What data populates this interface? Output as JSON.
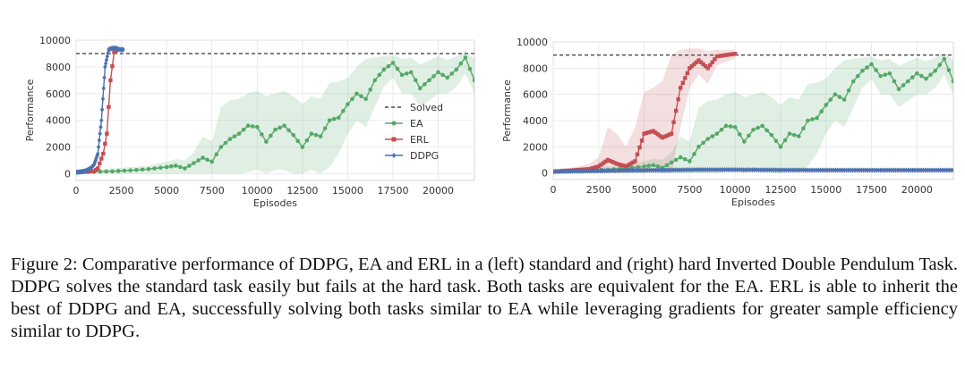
{
  "chart_data": [
    {
      "type": "line",
      "panel": "left",
      "xlabel": "Episodes",
      "ylabel": "Performance",
      "xlim": [
        0,
        22000
      ],
      "ylim": [
        -500,
        10000
      ],
      "xticks": [
        "0",
        "2500",
        "5000",
        "7500",
        "10000",
        "12500",
        "15000",
        "17500",
        "20000"
      ],
      "yticks": [
        "0",
        "2000",
        "4000",
        "6000",
        "8000",
        "10000"
      ],
      "grid": true,
      "legend_placement": "lower-right",
      "solved_threshold": 9000,
      "series": [
        {
          "name": "Solved",
          "style": "dashed",
          "color": "#222222",
          "x": [
            0,
            22000
          ],
          "y": [
            9000,
            9000
          ]
        },
        {
          "name": "EA",
          "color": "#55a868",
          "x": [
            0,
            1000,
            2000,
            3000,
            4000,
            5000,
            5500,
            6000,
            6500,
            7000,
            7500,
            8000,
            8500,
            9000,
            9500,
            10000,
            10500,
            11000,
            11500,
            12000,
            12500,
            13000,
            13500,
            14000,
            14500,
            15000,
            15500,
            16000,
            16500,
            17000,
            17500,
            18000,
            18500,
            19000,
            19500,
            20000,
            20500,
            21000,
            21500,
            22000
          ],
          "y": [
            100,
            150,
            180,
            250,
            350,
            500,
            600,
            400,
            800,
            1200,
            900,
            2000,
            2600,
            3000,
            3600,
            3500,
            2400,
            3300,
            3600,
            2900,
            2000,
            3000,
            2800,
            4000,
            4200,
            5200,
            6000,
            5600,
            7000,
            7800,
            8300,
            7400,
            7600,
            6400,
            7000,
            7600,
            7200,
            7800,
            8700,
            7000
          ],
          "band_low": [
            0,
            0,
            0,
            0,
            0,
            0,
            0,
            0,
            0,
            0,
            0,
            0,
            0,
            0,
            100,
            300,
            0,
            300,
            300,
            0,
            0,
            300,
            0,
            500,
            1500,
            3000,
            4000,
            3500,
            5000,
            6500,
            7200,
            6000,
            6000,
            5000,
            5500,
            6000,
            6000,
            6500,
            7500,
            6000
          ],
          "band_high": [
            300,
            300,
            400,
            500,
            600,
            900,
            1100,
            1000,
            1600,
            2800,
            2400,
            5000,
            5500,
            5600,
            6000,
            6200,
            5800,
            6000,
            6200,
            5800,
            5200,
            5800,
            5600,
            6800,
            6900,
            7200,
            8000,
            8600,
            8700,
            8800,
            8900,
            8600,
            8700,
            8200,
            8500,
            8800,
            8500,
            8800,
            9200,
            8600
          ]
        },
        {
          "name": "ERL",
          "color": "#c44e52",
          "x": [
            0,
            500,
            1000,
            1200,
            1500,
            1700,
            1900,
            2100,
            2300,
            2500
          ],
          "y": [
            100,
            150,
            200,
            400,
            1500,
            3000,
            7000,
            9100,
            9300,
            9300
          ]
        },
        {
          "name": "DDPG",
          "color": "#4c72b0",
          "x": [
            0,
            500,
            800,
            1000,
            1200,
            1400,
            1600,
            1800,
            2000,
            2200,
            2400,
            2600
          ],
          "y": [
            100,
            200,
            400,
            700,
            1500,
            4000,
            8000,
            9300,
            9400,
            9400,
            9300,
            9300
          ]
        }
      ]
    },
    {
      "type": "line",
      "panel": "right",
      "xlabel": "Episodes",
      "ylabel": "Performance",
      "xlim": [
        0,
        22000
      ],
      "ylim": [
        -500,
        10000
      ],
      "xticks": [
        "0",
        "2500",
        "5000",
        "7500",
        "10000",
        "12500",
        "15000",
        "17500",
        "20000"
      ],
      "yticks": [
        "0",
        "2000",
        "4000",
        "6000",
        "8000",
        "10000"
      ],
      "grid": true,
      "solved_threshold": 9000,
      "series": [
        {
          "name": "Solved",
          "style": "dashed",
          "color": "#222222",
          "x": [
            0,
            22000
          ],
          "y": [
            9000,
            9000
          ]
        },
        {
          "name": "EA",
          "color": "#55a868",
          "x": [
            0,
            1000,
            2000,
            3000,
            4000,
            5000,
            5500,
            6000,
            6500,
            7000,
            7500,
            8000,
            8500,
            9000,
            9500,
            10000,
            10500,
            11000,
            11500,
            12000,
            12500,
            13000,
            13500,
            14000,
            14500,
            15000,
            15500,
            16000,
            16500,
            17000,
            17500,
            18000,
            18500,
            19000,
            19500,
            20000,
            20500,
            21000,
            21500,
            22000
          ],
          "y": [
            100,
            150,
            180,
            250,
            350,
            500,
            600,
            400,
            800,
            1200,
            900,
            2000,
            2600,
            3000,
            3600,
            3500,
            2400,
            3300,
            3600,
            2900,
            2000,
            3000,
            2800,
            4000,
            4200,
            5200,
            6000,
            5600,
            7000,
            7800,
            8300,
            7400,
            7600,
            6400,
            7000,
            7600,
            7200,
            7800,
            8700,
            7000
          ],
          "band_low": [
            0,
            0,
            0,
            0,
            0,
            0,
            0,
            0,
            0,
            0,
            0,
            0,
            0,
            0,
            100,
            300,
            0,
            300,
            300,
            0,
            0,
            300,
            0,
            500,
            1500,
            3000,
            4000,
            3500,
            5000,
            6500,
            7200,
            6000,
            6000,
            5000,
            5500,
            6000,
            6000,
            6500,
            7500,
            6000
          ],
          "band_high": [
            300,
            300,
            400,
            500,
            600,
            900,
            1100,
            1000,
            1600,
            2800,
            2400,
            5000,
            5500,
            5600,
            6000,
            6200,
            5800,
            6000,
            6200,
            5800,
            5200,
            5800,
            5600,
            6800,
            6900,
            7200,
            8000,
            8600,
            8700,
            8800,
            8900,
            8600,
            8700,
            8200,
            8500,
            8800,
            8500,
            8800,
            9200,
            8600
          ]
        },
        {
          "name": "ERL",
          "color": "#c44e52",
          "x": [
            0,
            1000,
            2000,
            2500,
            3000,
            3500,
            4000,
            4500,
            5000,
            5500,
            6000,
            6500,
            7000,
            7500,
            8000,
            8500,
            9000,
            9500,
            10000
          ],
          "y": [
            100,
            200,
            300,
            500,
            1000,
            700,
            500,
            900,
            3000,
            3200,
            2700,
            3000,
            6500,
            8000,
            8600,
            8000,
            8900,
            9000,
            9100
          ],
          "band_low": [
            0,
            0,
            0,
            0,
            0,
            0,
            0,
            0,
            0,
            500,
            0,
            0,
            3500,
            6500,
            7500,
            6800,
            8200,
            8500,
            8700
          ],
          "band_high": [
            300,
            400,
            700,
            1200,
            3500,
            3000,
            2000,
            3500,
            6200,
            6500,
            7000,
            9000,
            9400,
            9500,
            9500,
            9300,
            9400,
            9400,
            9400
          ]
        },
        {
          "name": "DDPG",
          "color": "#4c72b0",
          "x": [
            0,
            2000,
            4000,
            6000,
            8000,
            10000,
            12000,
            14000,
            16000,
            18000,
            20000,
            22000
          ],
          "y": [
            100,
            150,
            200,
            220,
            250,
            250,
            230,
            220,
            220,
            220,
            220,
            220
          ]
        }
      ]
    }
  ],
  "caption": "Figure 2: Comparative performance of DDPG, EA and ERL in a (left) standard and (right) hard Inverted Double Pendulum Task. DDPG solves the standard task easily but fails at the hard task. Both tasks are equivalent for the EA. ERL is able to inherit the best of DDPG and EA, successfully solving both tasks similar to EA while leveraging gradients for greater sample efficiency similar to DDPG."
}
